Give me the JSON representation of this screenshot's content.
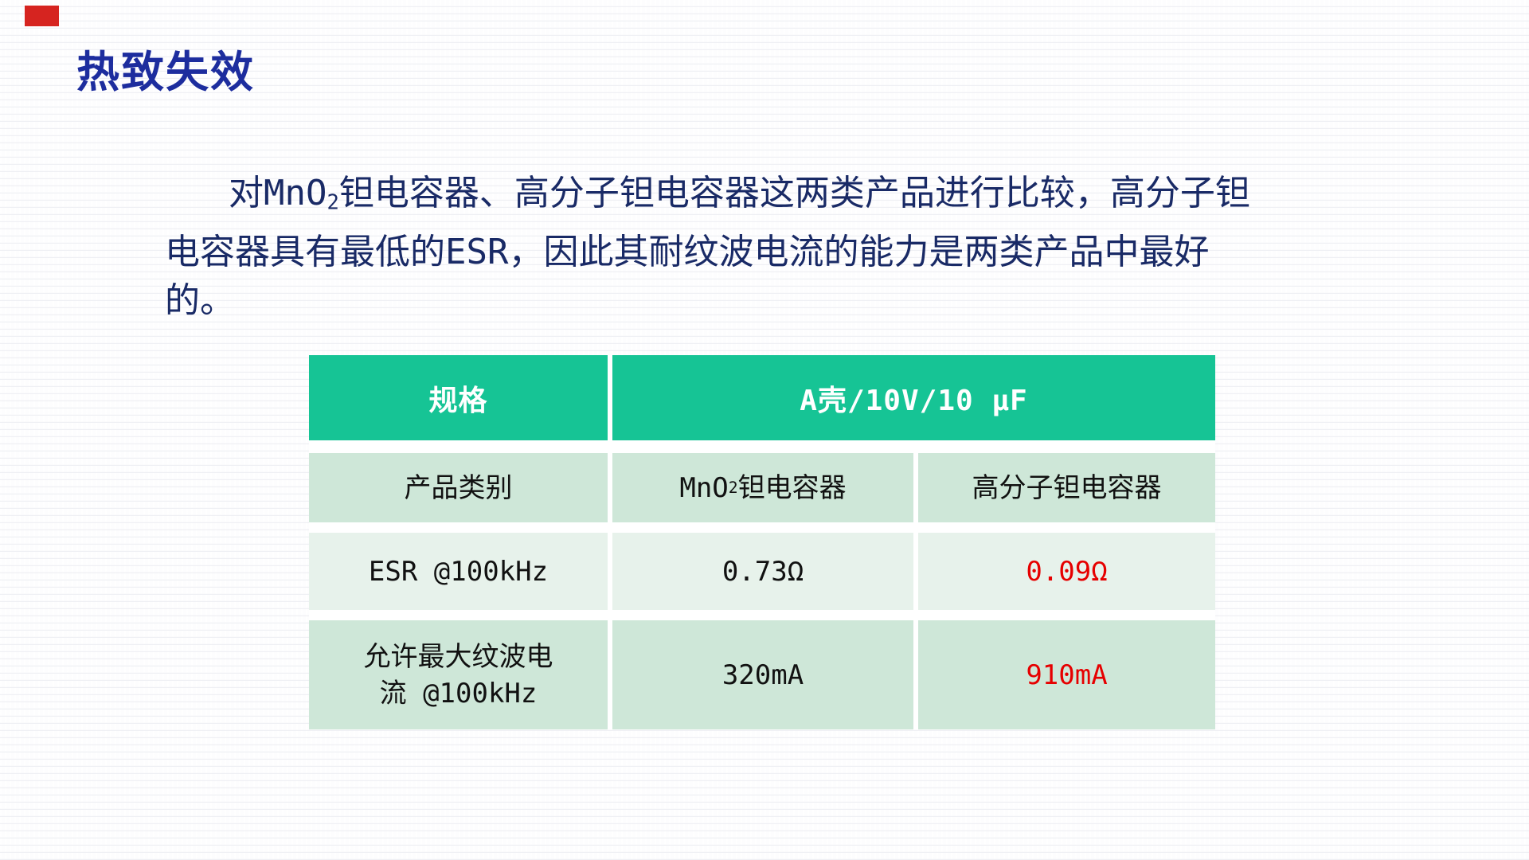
{
  "slide": {
    "title": "热致失效",
    "paragraph": {
      "line1_pre": "对MnO",
      "line1_sub": "2",
      "line1_rest": "钽电容器、高分子钽电容器这两类产品进行比较，高分子钽",
      "line2": "电容器具有最低的ESR，因此其耐纹波电流的能力是两类产品中最好",
      "line3": "的。"
    },
    "colors": {
      "accent_mark": "#d62420",
      "title_color": "#1d2d9e",
      "paragraph_color": "#192a66"
    }
  },
  "table": {
    "header": {
      "spec_label": "规格",
      "case_label": "A壳/10V/10 μF"
    },
    "rows": {
      "product": {
        "label": "产品类别",
        "mno2_pre": "MnO",
        "mno2_sub": "2",
        "mno2_rest": "钽电容器",
        "polymer": "高分子钽电容器"
      },
      "esr": {
        "label": "ESR @100kHz",
        "mno2_value": "0.73Ω",
        "polymer_value": "0.09Ω"
      },
      "ripple": {
        "label_line1": "允许最大纹波电",
        "label_line2": "流 @100kHz",
        "mno2_value": "320mA",
        "polymer_value": "910mA"
      }
    },
    "colors": {
      "header_bg": "#16c495",
      "header_text": "#ffffff",
      "row_green_bg": "#cee7d8",
      "row_pale_bg": "#e7f2eb",
      "value_text": "#111111",
      "highlight_red": "#e60000"
    }
  }
}
